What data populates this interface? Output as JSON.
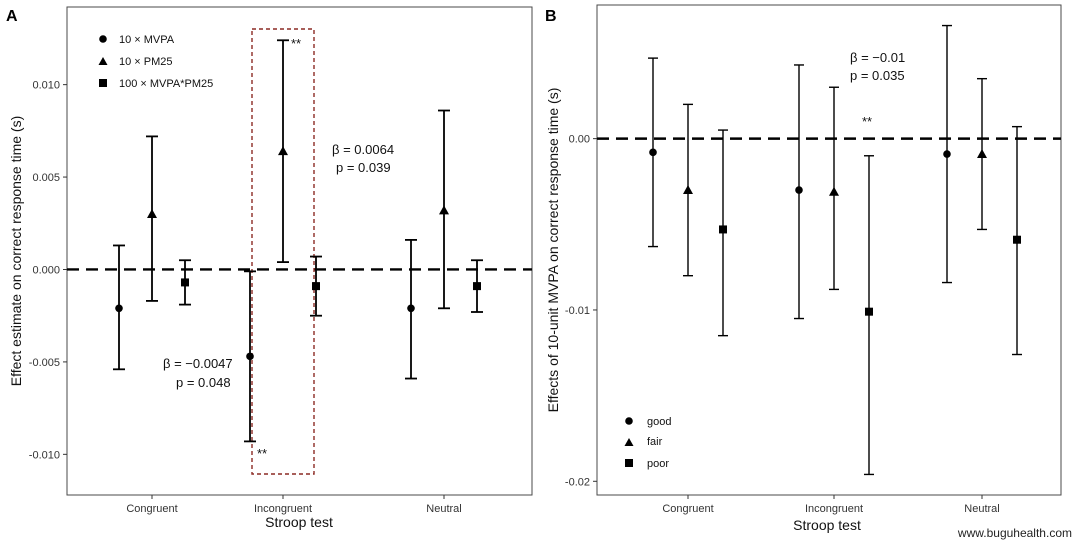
{
  "watermark": "www.buguhealth.com",
  "chart_data": [
    {
      "type": "scatter",
      "panel_label": "A",
      "xlabel": "Stroop test",
      "ylabel": "Effect estimate on correct response time (s)",
      "categories": [
        "Congruent",
        "Incongruent",
        "Neutral"
      ],
      "ylim": [
        -0.0122,
        0.0142
      ],
      "yticks": [
        -0.01,
        -0.005,
        0.0,
        0.005,
        0.01
      ],
      "ytick_labels": [
        "-0.010",
        "-0.005",
        "0.000",
        "0.005",
        "0.010"
      ],
      "reference_line": 0,
      "legend_position": "top-left",
      "series": [
        {
          "name": "10 × MVPA",
          "marker": "circle",
          "values": [
            -0.0021,
            -0.0047,
            -0.0021
          ],
          "lower": [
            -0.0054,
            -0.0093,
            -0.0059
          ],
          "upper": [
            0.0013,
            -0.0001,
            0.0016
          ]
        },
        {
          "name": "10 × PM25",
          "marker": "triangle",
          "values": [
            0.003,
            0.0064,
            0.0032
          ],
          "lower": [
            -0.0017,
            0.0004,
            -0.0021
          ],
          "upper": [
            0.0072,
            0.0124,
            0.0086
          ]
        },
        {
          "name": "100 × MVPA*PM25",
          "marker": "square",
          "values": [
            -0.0007,
            -0.0009,
            -0.0009
          ],
          "lower": [
            -0.0019,
            -0.0025,
            -0.0023
          ],
          "upper": [
            0.0005,
            0.0007,
            0.0005
          ]
        }
      ],
      "annotations": {
        "upper": {
          "beta": "β = 0.0064",
          "p": "p = 0.039",
          "stars": "**"
        },
        "lower": {
          "beta": "β = −0.0047",
          "p": "p = 0.048",
          "stars": "**"
        }
      },
      "highlight_category": "Incongruent",
      "highlight_color": "#8b2a24"
    },
    {
      "type": "scatter",
      "panel_label": "B",
      "xlabel": "Stroop test",
      "ylabel": "Effects of 10-unit MVPA on correct response time (s)",
      "categories": [
        "Congruent",
        "Incongruent",
        "Neutral"
      ],
      "ylim": [
        -0.0208,
        0.0078
      ],
      "yticks": [
        -0.02,
        -0.01,
        0.0
      ],
      "ytick_labels": [
        "-0.02",
        "-0.01",
        "0.00"
      ],
      "reference_line": 0,
      "legend_position": "bottom-left",
      "series": [
        {
          "name": "good",
          "marker": "circle",
          "values": [
            -0.0008,
            -0.003,
            -0.0009
          ],
          "lower": [
            -0.0063,
            -0.0105,
            -0.0084
          ],
          "upper": [
            0.0047,
            0.0043,
            0.0066
          ]
        },
        {
          "name": "fair",
          "marker": "triangle",
          "values": [
            -0.003,
            -0.0031,
            -0.0009
          ],
          "lower": [
            -0.008,
            -0.0088,
            -0.0053
          ],
          "upper": [
            0.002,
            0.003,
            0.0035
          ]
        },
        {
          "name": "poor",
          "marker": "square",
          "values": [
            -0.0053,
            -0.0101,
            -0.0059
          ],
          "lower": [
            -0.0115,
            -0.0196,
            -0.0126
          ],
          "upper": [
            0.0005,
            -0.001,
            0.0007
          ]
        }
      ],
      "annotations": {
        "beta": "β = −0.01",
        "p": "p = 0.035",
        "stars": "**"
      }
    }
  ]
}
